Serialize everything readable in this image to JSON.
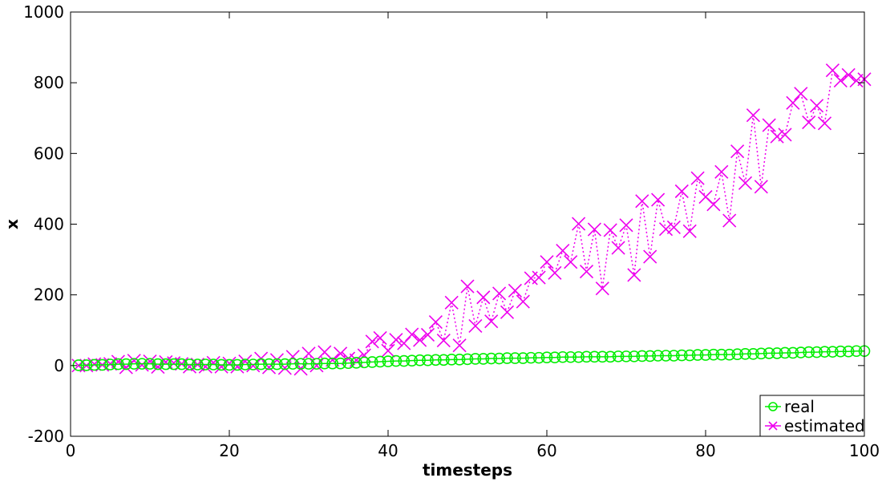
{
  "chart_data": {
    "type": "line",
    "xlabel": "timesteps",
    "ylabel": "x",
    "xlim": [
      0,
      100
    ],
    "ylim": [
      -200,
      1000
    ],
    "xticks": [
      0,
      20,
      40,
      60,
      80,
      100
    ],
    "yticks": [
      -200,
      0,
      200,
      400,
      600,
      800,
      1000
    ],
    "grid": false,
    "legend_position": "bottom-right",
    "x": [
      1,
      2,
      3,
      4,
      5,
      6,
      7,
      8,
      9,
      10,
      11,
      12,
      13,
      14,
      15,
      16,
      17,
      18,
      19,
      20,
      21,
      22,
      23,
      24,
      25,
      26,
      27,
      28,
      29,
      30,
      31,
      32,
      33,
      34,
      35,
      36,
      37,
      38,
      39,
      40,
      41,
      42,
      43,
      44,
      45,
      46,
      47,
      48,
      49,
      50,
      51,
      52,
      53,
      54,
      55,
      56,
      57,
      58,
      59,
      60,
      61,
      62,
      63,
      64,
      65,
      66,
      67,
      68,
      69,
      70,
      71,
      72,
      73,
      74,
      75,
      76,
      77,
      78,
      79,
      80,
      81,
      82,
      83,
      84,
      85,
      86,
      87,
      88,
      89,
      90,
      91,
      92,
      93,
      94,
      95,
      96,
      97,
      98,
      99,
      100
    ],
    "series": [
      {
        "name": "real",
        "color": "#00ee00",
        "marker": "circle",
        "line_style": "solid",
        "values": [
          1,
          1,
          2,
          2,
          3,
          4,
          4,
          5,
          5,
          5,
          4,
          4,
          4,
          4,
          3,
          3,
          3,
          3,
          2,
          2,
          2,
          3,
          3,
          4,
          4,
          4,
          4,
          5,
          5,
          5,
          5,
          6,
          6,
          6,
          7,
          8,
          9,
          10,
          11,
          12,
          13,
          13,
          14,
          15,
          15,
          16,
          16,
          17,
          17,
          18,
          19,
          19,
          20,
          20,
          21,
          21,
          21,
          22,
          22,
          23,
          23,
          24,
          24,
          24,
          25,
          25,
          25,
          25,
          26,
          26,
          26,
          27,
          27,
          28,
          28,
          28,
          29,
          29,
          30,
          30,
          31,
          31,
          31,
          32,
          33,
          33,
          34,
          35,
          35,
          36,
          36,
          37,
          38,
          38,
          39,
          39,
          40,
          40,
          41,
          41
        ]
      },
      {
        "name": "estimated",
        "color": "#ee00ee",
        "marker": "x",
        "line_style": "dotted",
        "values": [
          0,
          0,
          4,
          2,
          5,
          11,
          -5,
          14,
          2,
          12,
          -4,
          10,
          7,
          5,
          -3,
          3,
          -3,
          8,
          -3,
          6,
          -3,
          12,
          0,
          20,
          -5,
          16,
          -7,
          25,
          -9,
          34,
          0,
          38,
          16,
          34,
          20,
          15,
          29,
          68,
          78,
          42,
          73,
          63,
          88,
          72,
          87,
          123,
          71,
          178,
          57,
          224,
          112,
          193,
          125,
          204,
          151,
          212,
          181,
          247,
          249,
          293,
          262,
          325,
          293,
          401,
          266,
          385,
          218,
          383,
          333,
          397,
          256,
          465,
          308,
          469,
          386,
          391,
          493,
          380,
          530,
          477,
          456,
          548,
          410,
          606,
          516,
          708,
          506,
          680,
          648,
          653,
          743,
          769,
          688,
          735,
          685,
          835,
          806,
          822,
          806,
          810
        ]
      }
    ]
  },
  "legend": {
    "items": [
      {
        "label": "real",
        "color": "#00ee00",
        "marker": "circle"
      },
      {
        "label": "estimated",
        "color": "#ee00ee",
        "marker": "x"
      }
    ]
  }
}
